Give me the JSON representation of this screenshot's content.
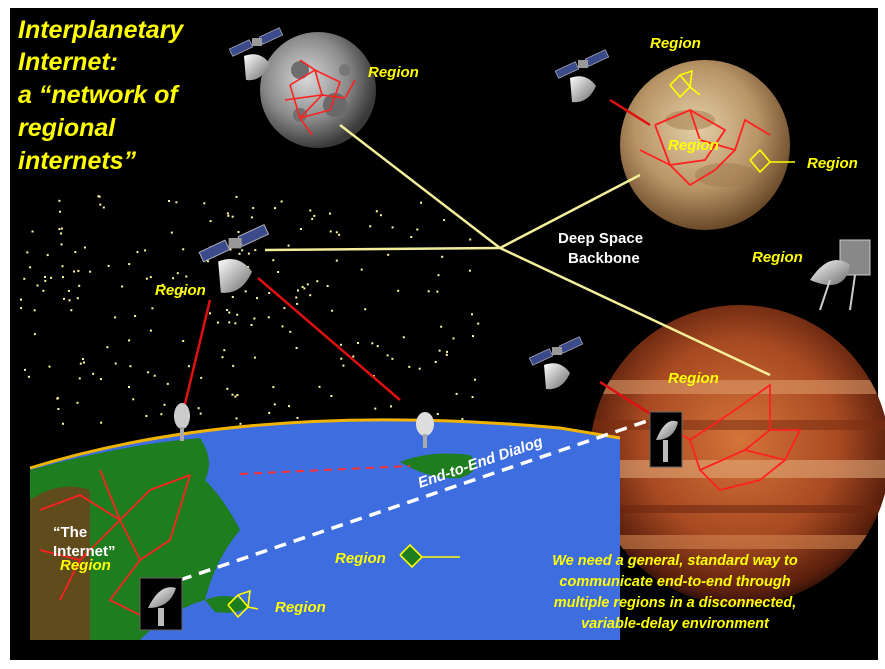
{
  "title": {
    "lines": [
      "Interplanetary",
      "Internet:",
      "a “network of",
      "regional",
      "internets”"
    ]
  },
  "labels": {
    "region": "Region",
    "backbone_line1": "Deep Space",
    "backbone_line2": "Backbone",
    "end_to_end": "End-to-End Dialog",
    "internet_line1": "“The",
    "internet_line2": "Internet”"
  },
  "caption": {
    "lines": [
      "We need a general, standard way to",
      "communicate end-to-end  through",
      "multiple regions in a disconnected,",
      "variable-delay environment"
    ]
  },
  "colors": {
    "background": "#000000",
    "title": "#ffff00",
    "network": "#ff0000",
    "backbone": "#f2ee9a",
    "ocean": "#3f6de0",
    "land": "#1f7a1f"
  }
}
